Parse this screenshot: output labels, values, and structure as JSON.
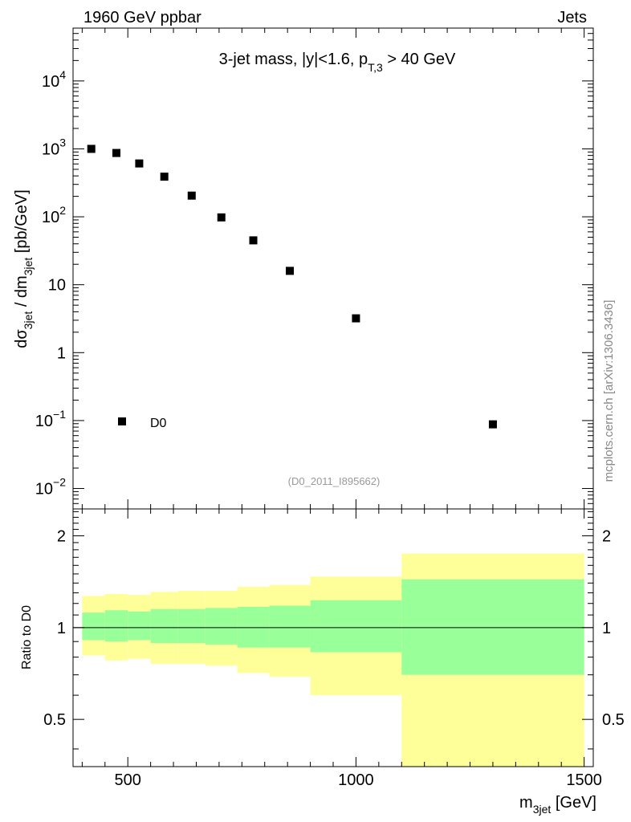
{
  "header": {
    "left_label": "1960 GeV ppbar",
    "right_label": "Jets"
  },
  "watermark": {
    "side_text": "mcplots.cern.ch [arXiv:1306.3436]",
    "analysis_id": "(D0_2011_I895662)"
  },
  "chart_data": [
    {
      "type": "scatter",
      "panel": "main",
      "title": {
        "prefix": "3-jet mass, |y|<1.6, p",
        "sub": "T,3",
        "suffix": " > 40 GeV"
      },
      "ylabel": {
        "p1": "dσ",
        "s1": "3jet",
        "p2": " / dm",
        "s2": "3jet",
        "p3": " [pb/GeV]"
      },
      "yscale": "log",
      "xlim": [
        380,
        1520
      ],
      "ylim": [
        0.005,
        60000
      ],
      "yticks": [
        {
          "value": 10000,
          "base": "10",
          "exp": "4"
        },
        {
          "value": 1000,
          "base": "10",
          "exp": "3"
        },
        {
          "value": 100,
          "base": "10",
          "exp": "2"
        },
        {
          "value": 10,
          "base": "10",
          "exp": ""
        },
        {
          "value": 1,
          "base": "1",
          "exp": ""
        },
        {
          "value": 0.1,
          "base": "10",
          "exp": "−1"
        },
        {
          "value": 0.01,
          "base": "10",
          "exp": "−2"
        }
      ],
      "series": [
        {
          "name": "D0",
          "color": "#000000",
          "marker": "square",
          "x": [
            420,
            475,
            525,
            580,
            640,
            705,
            775,
            855,
            1000,
            1300
          ],
          "y": [
            1000,
            870,
            610,
            390,
            205,
            98,
            45,
            16,
            3.2,
            0.088
          ]
        }
      ],
      "legend": {
        "label": "D0",
        "placement": "bottom-left"
      }
    },
    {
      "type": "area",
      "panel": "ratio",
      "ylabel": "Ratio to D0",
      "yscale": "log",
      "xlabel": {
        "main": "m",
        "sub": "3jet",
        "unit": " [GeV]"
      },
      "xlim": [
        380,
        1520
      ],
      "ylim": [
        0.35,
        2.45
      ],
      "yticks": [
        {
          "value": 2,
          "label": "2"
        },
        {
          "value": 1,
          "label": "1"
        },
        {
          "value": 0.5,
          "label": "0.5"
        }
      ],
      "xticks": [
        {
          "value": 500,
          "label": "500"
        },
        {
          "value": 1000,
          "label": "1000"
        },
        {
          "value": 1500,
          "label": "1500"
        }
      ],
      "reference_line": 1.0,
      "bins": [
        {
          "lo": 400,
          "hi": 450,
          "yellow": [
            0.81,
            1.27
          ],
          "green": [
            0.91,
            1.12
          ]
        },
        {
          "lo": 450,
          "hi": 500,
          "yellow": [
            0.78,
            1.29
          ],
          "green": [
            0.9,
            1.14
          ]
        },
        {
          "lo": 500,
          "hi": 550,
          "yellow": [
            0.79,
            1.28
          ],
          "green": [
            0.91,
            1.13
          ]
        },
        {
          "lo": 550,
          "hi": 610,
          "yellow": [
            0.76,
            1.31
          ],
          "green": [
            0.89,
            1.15
          ]
        },
        {
          "lo": 610,
          "hi": 670,
          "yellow": [
            0.76,
            1.32
          ],
          "green": [
            0.89,
            1.15
          ]
        },
        {
          "lo": 670,
          "hi": 740,
          "yellow": [
            0.75,
            1.32
          ],
          "green": [
            0.88,
            1.16
          ]
        },
        {
          "lo": 740,
          "hi": 810,
          "yellow": [
            0.71,
            1.36
          ],
          "green": [
            0.86,
            1.17
          ]
        },
        {
          "lo": 810,
          "hi": 900,
          "yellow": [
            0.69,
            1.38
          ],
          "green": [
            0.86,
            1.18
          ]
        },
        {
          "lo": 900,
          "hi": 1100,
          "yellow": [
            0.6,
            1.47
          ],
          "green": [
            0.83,
            1.23
          ]
        },
        {
          "lo": 1100,
          "hi": 1500,
          "yellow": [
            0.35,
            1.75
          ],
          "green": [
            0.7,
            1.44
          ]
        }
      ],
      "colors": {
        "outer_band": "#ffff99",
        "inner_band": "#99ff99"
      }
    }
  ]
}
